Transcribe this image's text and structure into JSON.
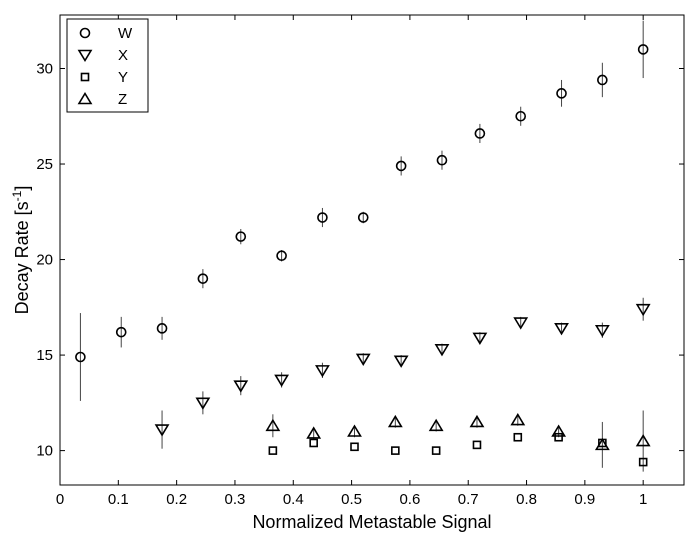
{
  "chart_data": {
    "type": "scatter",
    "xlabel": "Normalized Metastable Signal",
    "ylabel_main": "Decay Rate [s",
    "ylabel_sup": "-1",
    "ylabel_close": "]",
    "xlim": [
      0,
      1.07
    ],
    "ylim": [
      8.2,
      32.8
    ],
    "xticks": [
      0,
      0.1,
      0.2,
      0.3,
      0.4,
      0.5,
      0.6,
      0.7,
      0.8,
      0.9,
      1
    ],
    "xtick_labels": [
      "0",
      "0.1",
      "0.2",
      "0.3",
      "0.4",
      "0.5",
      "0.6",
      "0.7",
      "0.8",
      "0.9",
      "1"
    ],
    "yticks": [
      10,
      15,
      20,
      25,
      30
    ],
    "ytick_labels": [
      "10",
      "15",
      "20",
      "25",
      "30"
    ],
    "grid": false,
    "legend_position": "top-left",
    "series": [
      {
        "name": "W",
        "marker": "circle",
        "points": [
          {
            "x": 0.035,
            "y": 14.9,
            "err": 2.3
          },
          {
            "x": 0.105,
            "y": 16.2,
            "err": 0.8
          },
          {
            "x": 0.175,
            "y": 16.4,
            "err": 0.6
          },
          {
            "x": 0.245,
            "y": 19.0,
            "err": 0.5
          },
          {
            "x": 0.31,
            "y": 21.2,
            "err": 0.4
          },
          {
            "x": 0.38,
            "y": 20.2,
            "err": 0.3
          },
          {
            "x": 0.45,
            "y": 22.2,
            "err": 0.5
          },
          {
            "x": 0.52,
            "y": 22.2,
            "err": 0.3
          },
          {
            "x": 0.585,
            "y": 24.9,
            "err": 0.5
          },
          {
            "x": 0.655,
            "y": 25.2,
            "err": 0.5
          },
          {
            "x": 0.72,
            "y": 26.6,
            "err": 0.5
          },
          {
            "x": 0.79,
            "y": 27.5,
            "err": 0.5
          },
          {
            "x": 0.86,
            "y": 28.7,
            "err": 0.7
          },
          {
            "x": 0.93,
            "y": 29.4,
            "err": 0.9
          },
          {
            "x": 1.0,
            "y": 31.0,
            "err": 1.5
          }
        ]
      },
      {
        "name": "X",
        "marker": "triangle-down",
        "points": [
          {
            "x": 0.175,
            "y": 11.1,
            "err": 1.0
          },
          {
            "x": 0.245,
            "y": 12.5,
            "err": 0.6
          },
          {
            "x": 0.31,
            "y": 13.4,
            "err": 0.5
          },
          {
            "x": 0.38,
            "y": 13.7,
            "err": 0.4
          },
          {
            "x": 0.45,
            "y": 14.2,
            "err": 0.4
          },
          {
            "x": 0.52,
            "y": 14.8,
            "err": 0.3
          },
          {
            "x": 0.585,
            "y": 14.7,
            "err": 0.3
          },
          {
            "x": 0.655,
            "y": 15.3,
            "err": 0.3
          },
          {
            "x": 0.72,
            "y": 15.9,
            "err": 0.3
          },
          {
            "x": 0.79,
            "y": 16.7,
            "err": 0.3
          },
          {
            "x": 0.86,
            "y": 16.4,
            "err": 0.3
          },
          {
            "x": 0.93,
            "y": 16.3,
            "err": 0.4
          },
          {
            "x": 1.0,
            "y": 17.4,
            "err": 0.6
          }
        ]
      },
      {
        "name": "Y",
        "marker": "square",
        "points": [
          {
            "x": 0.365,
            "y": 10.0,
            "err": 0.0
          },
          {
            "x": 0.435,
            "y": 10.4,
            "err": 0.0
          },
          {
            "x": 0.505,
            "y": 10.2,
            "err": 0.0
          },
          {
            "x": 0.575,
            "y": 10.0,
            "err": 0.0
          },
          {
            "x": 0.645,
            "y": 10.0,
            "err": 0.0
          },
          {
            "x": 0.715,
            "y": 10.3,
            "err": 0.0
          },
          {
            "x": 0.785,
            "y": 10.7,
            "err": 0.0
          },
          {
            "x": 0.855,
            "y": 10.7,
            "err": 0.0
          },
          {
            "x": 0.93,
            "y": 10.4,
            "err": 0.0
          },
          {
            "x": 1.0,
            "y": 9.4,
            "err": 0.0
          }
        ]
      },
      {
        "name": "Z",
        "marker": "triangle-up",
        "points": [
          {
            "x": 0.365,
            "y": 11.3,
            "err": 0.6
          },
          {
            "x": 0.435,
            "y": 10.9,
            "err": 0.3
          },
          {
            "x": 0.505,
            "y": 11.0,
            "err": 0.3
          },
          {
            "x": 0.575,
            "y": 11.5,
            "err": 0.3
          },
          {
            "x": 0.645,
            "y": 11.3,
            "err": 0.3
          },
          {
            "x": 0.715,
            "y": 11.5,
            "err": 0.3
          },
          {
            "x": 0.785,
            "y": 11.6,
            "err": 0.3
          },
          {
            "x": 0.855,
            "y": 11.0,
            "err": 0.3
          },
          {
            "x": 0.93,
            "y": 10.3,
            "err": 1.2
          },
          {
            "x": 1.0,
            "y": 10.5,
            "err": 1.6
          }
        ]
      }
    ]
  }
}
